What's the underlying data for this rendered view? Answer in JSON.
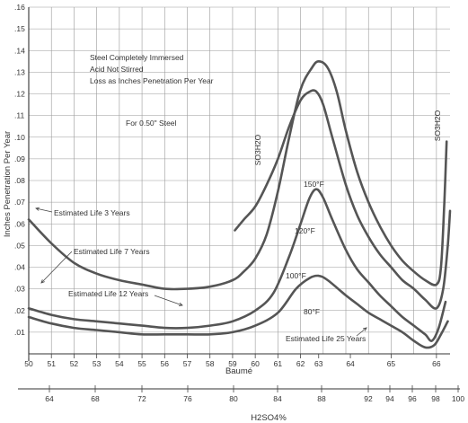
{
  "chart_data": {
    "type": "line",
    "title": "",
    "ylabel": "Inches Penetration Per Year",
    "ylim": [
      0,
      0.16
    ],
    "yticks": [
      ".01",
      ".02",
      ".03",
      ".04",
      ".05",
      ".06",
      ".07",
      ".08",
      ".09",
      ".10",
      ".11",
      ".12",
      ".13",
      ".14",
      ".15",
      ".16"
    ],
    "xlabel": "Baumé",
    "xlim": [
      50,
      68.6
    ],
    "xticks": [
      "50",
      "51",
      "52",
      "53",
      "54",
      "55",
      "56",
      "57",
      "58",
      "59",
      "60",
      "61",
      "62",
      "63",
      "64",
      "65",
      "66"
    ],
    "x2label": "H2SO4%",
    "x2ticks": [
      "64",
      "68",
      "72",
      "76",
      "80",
      "84",
      "88",
      "92",
      "94",
      "96",
      "98",
      "100"
    ],
    "grid": true,
    "notes": [
      "Steel Completely Immersed",
      "Acid Not Stirred",
      "Loss as Inches Penetration Per Year",
      "For 0.50\" Steel"
    ],
    "vertical_labels": [
      "SO3H2O",
      "SO3H2O"
    ],
    "series": [
      {
        "name": "150°F",
        "points": [
          [
            50,
            0.062
          ],
          [
            51,
            0.051
          ],
          [
            52,
            0.042
          ],
          [
            53,
            0.037
          ],
          [
            54,
            0.034
          ],
          [
            55,
            0.032
          ],
          [
            56,
            0.03
          ],
          [
            57,
            0.03
          ],
          [
            58,
            0.031
          ],
          [
            59,
            0.034
          ],
          [
            59.5,
            0.038
          ],
          [
            60,
            0.044
          ],
          [
            60.5,
            0.055
          ],
          [
            61,
            0.075
          ],
          [
            61.5,
            0.1
          ],
          [
            62,
            0.122
          ],
          [
            62.5,
            0.132
          ],
          [
            62.8,
            0.135
          ],
          [
            63.2,
            0.132
          ],
          [
            63.6,
            0.121
          ],
          [
            64,
            0.103
          ],
          [
            64.5,
            0.084
          ],
          [
            65,
            0.07
          ],
          [
            65.5,
            0.059
          ],
          [
            66,
            0.05
          ],
          [
            66.5,
            0.043
          ],
          [
            67,
            0.038
          ],
          [
            67.5,
            0.034
          ],
          [
            68,
            0.032
          ],
          [
            68.2,
            0.04
          ],
          [
            68.35,
            0.07
          ],
          [
            68.45,
            0.098
          ]
        ]
      },
      {
        "name": "120°F",
        "points": [
          [
            59.1,
            0.057
          ],
          [
            59.5,
            0.062
          ],
          [
            60,
            0.068
          ],
          [
            60.5,
            0.078
          ],
          [
            61,
            0.09
          ],
          [
            61.5,
            0.105
          ],
          [
            62,
            0.117
          ],
          [
            62.4,
            0.121
          ],
          [
            62.7,
            0.121
          ],
          [
            63,
            0.115
          ],
          [
            63.4,
            0.1
          ],
          [
            64,
            0.078
          ],
          [
            64.5,
            0.064
          ],
          [
            65,
            0.054
          ],
          [
            65.5,
            0.046
          ],
          [
            66,
            0.04
          ],
          [
            66.5,
            0.034
          ],
          [
            67,
            0.03
          ],
          [
            67.5,
            0.025
          ],
          [
            68,
            0.021
          ],
          [
            68.3,
            0.03
          ],
          [
            68.5,
            0.05
          ],
          [
            68.6,
            0.066
          ]
        ]
      },
      {
        "name": "100°F",
        "points": [
          [
            50,
            0.021
          ],
          [
            51,
            0.018
          ],
          [
            52,
            0.016
          ],
          [
            53,
            0.015
          ],
          [
            54,
            0.014
          ],
          [
            55,
            0.013
          ],
          [
            56,
            0.012
          ],
          [
            57,
            0.012
          ],
          [
            58,
            0.013
          ],
          [
            59,
            0.015
          ],
          [
            60,
            0.02
          ],
          [
            60.8,
            0.028
          ],
          [
            61.5,
            0.045
          ],
          [
            62,
            0.06
          ],
          [
            62.4,
            0.072
          ],
          [
            62.7,
            0.076
          ],
          [
            63,
            0.072
          ],
          [
            63.4,
            0.062
          ],
          [
            64,
            0.048
          ],
          [
            64.5,
            0.039
          ],
          [
            65,
            0.033
          ],
          [
            65.5,
            0.027
          ],
          [
            66,
            0.022
          ],
          [
            66.5,
            0.017
          ],
          [
            67,
            0.013
          ],
          [
            67.5,
            0.009
          ],
          [
            67.8,
            0.006
          ],
          [
            68.1,
            0.012
          ],
          [
            68.4,
            0.024
          ]
        ]
      },
      {
        "name": "80°F",
        "points": [
          [
            50,
            0.017
          ],
          [
            51,
            0.014
          ],
          [
            52,
            0.012
          ],
          [
            53,
            0.011
          ],
          [
            54,
            0.01
          ],
          [
            55,
            0.009
          ],
          [
            56,
            0.009
          ],
          [
            57,
            0.009
          ],
          [
            58,
            0.009
          ],
          [
            59,
            0.01
          ],
          [
            60,
            0.013
          ],
          [
            61,
            0.019
          ],
          [
            61.8,
            0.03
          ],
          [
            62.4,
            0.035
          ],
          [
            62.8,
            0.036
          ],
          [
            63.2,
            0.034
          ],
          [
            64,
            0.027
          ],
          [
            64.5,
            0.023
          ],
          [
            65,
            0.019
          ],
          [
            65.5,
            0.016
          ],
          [
            66,
            0.013
          ],
          [
            66.5,
            0.01
          ],
          [
            67,
            0.006
          ],
          [
            67.5,
            0.003
          ],
          [
            67.9,
            0.004
          ],
          [
            68.2,
            0.009
          ],
          [
            68.5,
            0.015
          ]
        ]
      }
    ],
    "annotations": [
      {
        "text": "Estimated Life 3 Years"
      },
      {
        "text": "Estimated Life 7 Years"
      },
      {
        "text": "Estimated Life 12 Years"
      },
      {
        "text": "Estimated Life 25 Years"
      }
    ]
  }
}
